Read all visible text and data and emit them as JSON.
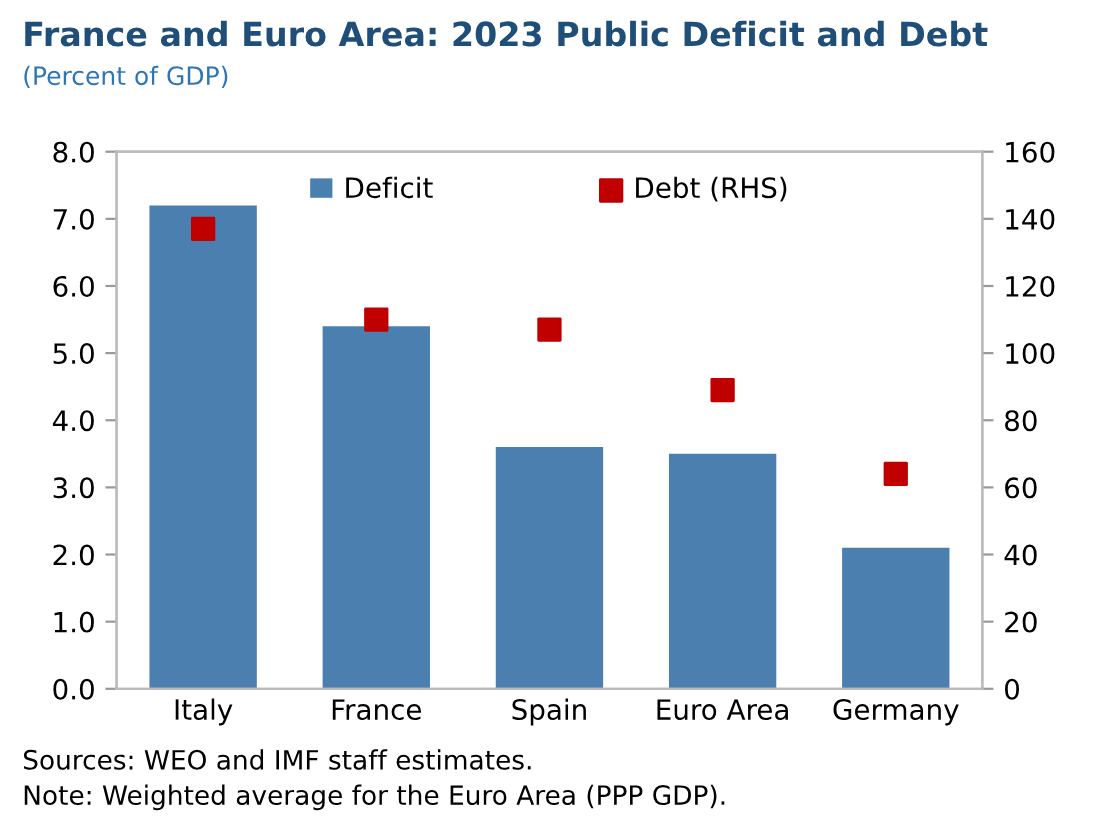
{
  "chart_data": {
    "type": "bar",
    "title": "France and Euro Area: 2023 Public Deficit and Debt",
    "subtitle": "(Percent of GDP)",
    "categories": [
      "Italy",
      "France",
      "Spain",
      "Euro Area",
      "Germany"
    ],
    "series": [
      {
        "name": "Deficit",
        "color": "#4a7fb0",
        "values": [
          7.2,
          5.4,
          3.6,
          3.5,
          2.1
        ]
      },
      {
        "name": "Debt (RHS)",
        "type": "scatter",
        "axis": "y2",
        "color": "#c00000",
        "marker": "square",
        "values": [
          137,
          110,
          107,
          89,
          64
        ]
      }
    ],
    "ylim": [
      0,
      8
    ],
    "yticks": [
      {
        "value": 0,
        "label": "0.0"
      },
      {
        "value": 1,
        "label": "1.0"
      },
      {
        "value": 2,
        "label": "2.0"
      },
      {
        "value": 3,
        "label": "3.0"
      },
      {
        "value": 4,
        "label": "4.0"
      },
      {
        "value": 5,
        "label": "5.0"
      },
      {
        "value": 6,
        "label": "6.0"
      },
      {
        "value": 7,
        "label": "7.0"
      },
      {
        "value": 8,
        "label": "8.0"
      }
    ],
    "y2lim": [
      0,
      160
    ],
    "y2ticks": [
      0,
      20,
      40,
      60,
      80,
      100,
      120,
      140,
      160
    ],
    "grid": false,
    "legend": "top",
    "annotations": [
      "Sources: WEO and IMF staff estimates.",
      "Note: Weighted average for the Euro Area (PPP GDP)."
    ]
  }
}
